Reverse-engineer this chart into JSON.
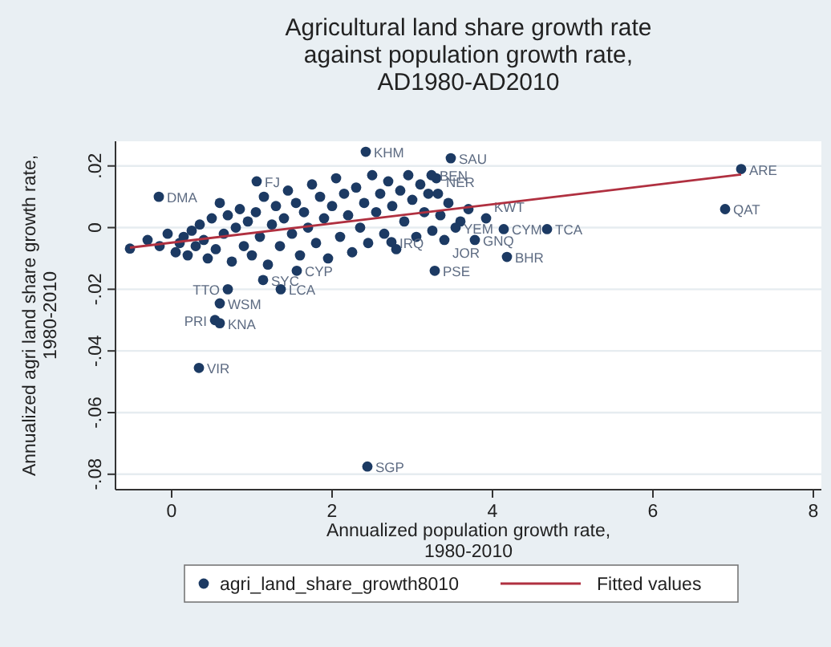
{
  "chart_data": {
    "type": "scatter",
    "title": "Agricultural land share growth rate\nagainst population growth rate,\nAD1980-AD2010",
    "xlabel": "Annualized population growth rate,\n1980-2010",
    "ylabel": "Annualized agri land share growth rate,\n1980-2010",
    "xlim": [
      -0.7,
      8.1
    ],
    "ylim": [
      -0.085,
      0.028
    ],
    "xticks": [
      0,
      2,
      4,
      6,
      8
    ],
    "yticks": [
      {
        "value": 0.02,
        "label": ".02"
      },
      {
        "value": 0,
        "label": "0"
      },
      {
        "value": -0.02,
        "label": "-.02"
      },
      {
        "value": -0.04,
        "label": "-.04"
      },
      {
        "value": -0.06,
        "label": "-.06"
      },
      {
        "value": -0.08,
        "label": "-.08"
      }
    ],
    "grid": "y",
    "legend": "bottom",
    "marker": "circle",
    "series": [
      {
        "name": "agri_land_share_growth8010",
        "color": "#1c3a63",
        "x": [
          -0.52,
          -0.3,
          -0.15,
          -0.05,
          0.05,
          0.1,
          0.15,
          0.2,
          0.25,
          0.3,
          0.35,
          0.4,
          0.45,
          0.5,
          0.55,
          0.6,
          0.65,
          0.7,
          0.75,
          0.8,
          0.85,
          0.9,
          0.95,
          1.0,
          1.05,
          1.1,
          1.15,
          1.2,
          1.25,
          1.3,
          1.35,
          1.4,
          1.45,
          1.5,
          1.55,
          1.6,
          1.65,
          1.7,
          1.75,
          1.8,
          1.85,
          1.9,
          1.95,
          2.0,
          2.05,
          2.1,
          2.15,
          2.2,
          2.25,
          2.3,
          2.35,
          2.4,
          2.45,
          2.5,
          2.55,
          2.6,
          2.65,
          2.7,
          2.75,
          2.8,
          2.85,
          2.9,
          2.95,
          3.0,
          3.05,
          3.1,
          3.15,
          3.2,
          3.25,
          3.3,
          3.35,
          3.45,
          3.6,
          3.7,
          2.42,
          3.48,
          7.1,
          6.9,
          -0.16,
          1.06,
          3.92,
          4.14,
          4.68,
          3.78,
          3.4,
          4.18,
          3.28,
          3.54,
          3.32,
          3.24,
          1.36,
          1.56,
          1.14,
          0.7,
          0.6,
          0.54,
          0.6,
          0.34,
          2.44,
          2.74
        ],
        "values": [
          -0.0068,
          -0.004,
          -0.006,
          -0.002,
          -0.008,
          -0.005,
          -0.003,
          -0.009,
          -0.001,
          -0.006,
          0.001,
          -0.004,
          -0.01,
          0.003,
          -0.007,
          0.008,
          -0.002,
          0.004,
          -0.011,
          0.0,
          0.006,
          -0.006,
          0.002,
          -0.009,
          0.005,
          -0.003,
          0.01,
          -0.012,
          0.001,
          0.007,
          -0.006,
          0.003,
          0.012,
          -0.002,
          0.008,
          -0.009,
          0.005,
          0.0,
          0.014,
          -0.005,
          0.01,
          0.003,
          -0.01,
          0.007,
          0.016,
          -0.003,
          0.011,
          0.004,
          -0.008,
          0.013,
          0.0,
          0.008,
          -0.005,
          0.017,
          0.005,
          0.011,
          -0.002,
          0.015,
          0.007,
          -0.007,
          0.012,
          0.002,
          0.017,
          0.009,
          -0.003,
          0.014,
          0.005,
          0.011,
          -0.001,
          0.016,
          0.004,
          0.008,
          0.002,
          0.006,
          0.0246,
          0.0225,
          0.019,
          0.006,
          0.01,
          0.015,
          0.003,
          -0.0005,
          -0.0005,
          -0.004,
          -0.004,
          -0.0095,
          -0.014,
          0.0,
          0.011,
          0.017,
          -0.02,
          -0.014,
          -0.017,
          -0.02,
          -0.0246,
          -0.03,
          -0.031,
          -0.0455,
          -0.0775,
          -0.0047
        ]
      },
      {
        "name": "Fitted values",
        "type": "line",
        "color": "#b03040",
        "line_style": "solid",
        "marker": "none",
        "x": [
          -0.52,
          7.1
        ],
        "values": [
          -0.0065,
          0.0172
        ]
      }
    ],
    "annotations": [
      {
        "text": "KHM",
        "x": 2.42,
        "y": 0.0246
      },
      {
        "text": "SAU",
        "x": 3.48,
        "y": 0.0225
      },
      {
        "text": "ARE",
        "x": 7.1,
        "y": 0.019
      },
      {
        "text": "QAT",
        "x": 6.9,
        "y": 0.006
      },
      {
        "text": "DMA",
        "x": -0.16,
        "y": 0.01
      },
      {
        "text": "FJ",
        "x": 1.06,
        "y": 0.015
      },
      {
        "text": "KWT",
        "x": 3.92,
        "y": 0.003
      },
      {
        "text": "CYM",
        "x": 4.14,
        "y": -0.0005
      },
      {
        "text": "TCA",
        "x": 4.68,
        "y": -0.0005
      },
      {
        "text": "GNQ",
        "x": 3.78,
        "y": -0.004
      },
      {
        "text": "JOR",
        "x": 3.4,
        "y": -0.004
      },
      {
        "text": "BHR",
        "x": 4.18,
        "y": -0.0095
      },
      {
        "text": "PSE",
        "x": 3.28,
        "y": -0.014
      },
      {
        "text": "YEM",
        "x": 3.54,
        "y": 0.0
      },
      {
        "text": "NER",
        "x": 3.32,
        "y": 0.011
      },
      {
        "text": "BEN",
        "x": 3.24,
        "y": 0.017
      },
      {
        "text": "LCA",
        "x": 1.36,
        "y": -0.02
      },
      {
        "text": "CYP",
        "x": 1.56,
        "y": -0.014
      },
      {
        "text": "SYC",
        "x": 1.14,
        "y": -0.017
      },
      {
        "text": "TTO",
        "x": 0.7,
        "y": -0.02
      },
      {
        "text": "WSM",
        "x": 0.6,
        "y": -0.0246
      },
      {
        "text": "PRI",
        "x": 0.54,
        "y": -0.03
      },
      {
        "text": "KNA",
        "x": 0.6,
        "y": -0.031
      },
      {
        "text": "VIR",
        "x": 0.34,
        "y": -0.0455
      },
      {
        "text": "SGP",
        "x": 2.44,
        "y": -0.0775
      },
      {
        "text": "IRQ",
        "x": 2.74,
        "y": -0.0047
      }
    ]
  }
}
